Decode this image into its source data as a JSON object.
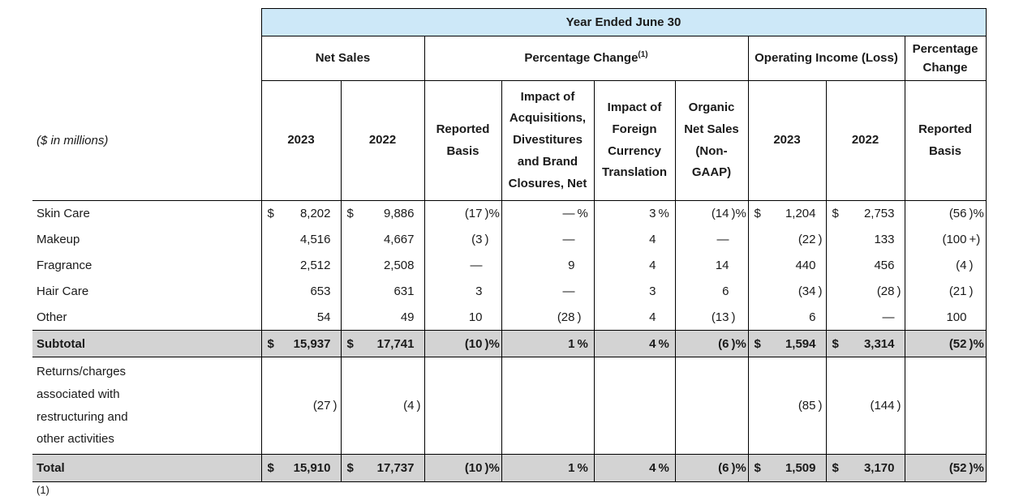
{
  "note_label": "($ in millions)",
  "banner": {
    "title": "Year Ended June 30"
  },
  "groups": {
    "net_sales": "Net Sales",
    "pct_change": "Percentage Change",
    "pct_change_footnote": "(1)",
    "operating_income": "Operating Income (Loss)",
    "pct_change_right": "Percentage Change"
  },
  "columns": [
    "2023",
    "2022",
    "Reported Basis",
    "Impact of Acquisitions, Divestitures and Brand Closures, Net",
    "Impact of Foreign Currency Translation",
    "Organic Net Sales (Non-GAAP)",
    "2023",
    "2022",
    "Reported Basis"
  ],
  "body": {
    "rows": [
      {
        "type": "data",
        "label": "Skin Care",
        "cells": [
          {
            "d": "$",
            "v": "8,202"
          },
          {
            "d": "$",
            "v": "9,886"
          },
          {
            "v": "(17",
            "s": ")%"
          },
          {
            "v": "—",
            "s": "%"
          },
          {
            "v": "3",
            "s": "%"
          },
          {
            "v": "(14",
            "s": ")%"
          },
          {
            "d": "$",
            "v": "1,204"
          },
          {
            "d": "$",
            "v": "2,753"
          },
          {
            "v": "(56",
            "s": ")%"
          }
        ]
      },
      {
        "type": "data",
        "label": "Makeup",
        "cells": [
          {
            "v": "4,516"
          },
          {
            "v": "4,667"
          },
          {
            "v": "(3",
            "s": ")"
          },
          {
            "v": "—"
          },
          {
            "v": "4"
          },
          {
            "v": "—"
          },
          {
            "v": "(22",
            "s": ")"
          },
          {
            "v": "133"
          },
          {
            "v": "(100",
            "s": "+)"
          }
        ]
      },
      {
        "type": "data",
        "label": "Fragrance",
        "cells": [
          {
            "v": "2,512"
          },
          {
            "v": "2,508"
          },
          {
            "v": "—"
          },
          {
            "v": "9"
          },
          {
            "v": "4"
          },
          {
            "v": "14"
          },
          {
            "v": "440"
          },
          {
            "v": "456"
          },
          {
            "v": "(4",
            "s": ")"
          }
        ]
      },
      {
        "type": "data",
        "label": "Hair Care",
        "cells": [
          {
            "v": "653"
          },
          {
            "v": "631"
          },
          {
            "v": "3"
          },
          {
            "v": "—"
          },
          {
            "v": "3"
          },
          {
            "v": "6"
          },
          {
            "v": "(34",
            "s": ")"
          },
          {
            "v": "(28",
            "s": ")"
          },
          {
            "v": "(21",
            "s": ")"
          }
        ]
      },
      {
        "type": "data",
        "label": "Other",
        "cells": [
          {
            "v": "54"
          },
          {
            "v": "49"
          },
          {
            "v": "10"
          },
          {
            "v": "(28",
            "s": ")"
          },
          {
            "v": "4"
          },
          {
            "v": "(13",
            "s": ")"
          },
          {
            "v": "6"
          },
          {
            "v": "—"
          },
          {
            "v": "100"
          }
        ]
      },
      {
        "type": "subtotal",
        "label": "Subtotal",
        "cells": [
          {
            "d": "$",
            "v": "15,937"
          },
          {
            "d": "$",
            "v": "17,741"
          },
          {
            "v": "(10",
            "s": ")%"
          },
          {
            "v": "1",
            "s": "%"
          },
          {
            "v": "4",
            "s": "%"
          },
          {
            "v": "(6",
            "s": ")%"
          },
          {
            "d": "$",
            "v": "1,594"
          },
          {
            "d": "$",
            "v": "3,314"
          },
          {
            "v": "(52",
            "s": ")%"
          }
        ]
      },
      {
        "type": "returns",
        "label": "Returns/charges associated with restructuring and other activities",
        "cells": [
          {
            "v": "(27",
            "s": ")"
          },
          {
            "v": "(4",
            "s": ")"
          },
          {},
          {},
          {},
          {},
          {
            "v": "(85",
            "s": ")"
          },
          {
            "v": "(144",
            "s": ")"
          },
          {}
        ]
      },
      {
        "type": "total",
        "label": "Total",
        "cells": [
          {
            "d": "$",
            "v": "15,910"
          },
          {
            "d": "$",
            "v": "17,737"
          },
          {
            "v": "(10",
            "s": ")%"
          },
          {
            "v": "1",
            "s": "%"
          },
          {
            "v": "4",
            "s": "%"
          },
          {
            "v": "(6",
            "s": ")%"
          },
          {
            "d": "$",
            "v": "1,509"
          },
          {
            "d": "$",
            "v": "3,170"
          },
          {
            "v": "(52",
            "s": ")%"
          }
        ]
      }
    ]
  },
  "footnote_fragment": "(1)",
  "colors": {
    "banner_bg": "#cde8f8",
    "band_bg": "#d3d3d3",
    "border": "#000000",
    "text": "#1a1a1a"
  }
}
